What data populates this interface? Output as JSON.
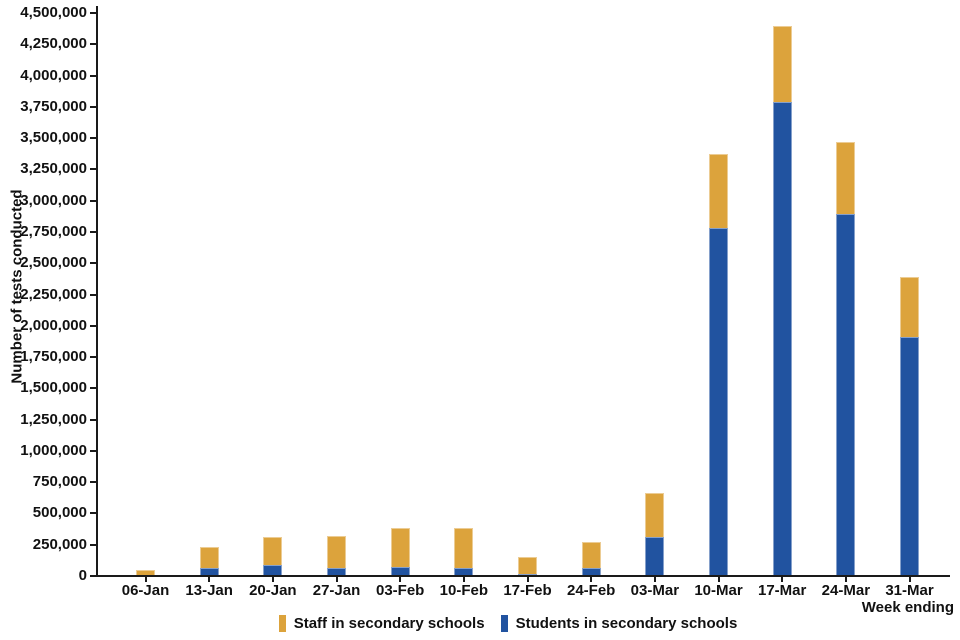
{
  "chart_data": {
    "type": "bar",
    "stacked": true,
    "title": "",
    "ylabel": "Number of tests conducted",
    "xlabel": "Week ending",
    "ylim": [
      0,
      4500000
    ],
    "ytick_step": 250000,
    "yticks": [
      "0",
      "250,000",
      "500,000",
      "750,000",
      "1,000,000",
      "1,250,000",
      "1,500,000",
      "1,750,000",
      "2,000,000",
      "2,250,000",
      "2,500,000",
      "2,750,000",
      "3,000,000",
      "3,250,000",
      "3,500,000",
      "3,750,000",
      "4,000,000",
      "4,250,000",
      "4,500,000"
    ],
    "categories": [
      "06-Jan",
      "13-Jan",
      "20-Jan",
      "27-Jan",
      "03-Feb",
      "10-Feb",
      "17-Feb",
      "24-Feb",
      "03-Mar",
      "10-Mar",
      "17-Mar",
      "24-Mar",
      "31-Mar"
    ],
    "series": [
      {
        "name": "Students in secondary schools",
        "color": "#2153A0",
        "values": [
          10000,
          60000,
          85000,
          65000,
          75000,
          65000,
          15000,
          65000,
          310000,
          2780000,
          3790000,
          2890000,
          1910000
        ]
      },
      {
        "name": "Staff in secondary schools",
        "color": "#DCA33C",
        "values": [
          40000,
          175000,
          230000,
          255000,
          310000,
          315000,
          140000,
          205000,
          355000,
          590000,
          610000,
          580000,
          480000
        ]
      }
    ],
    "legend": [
      {
        "label": "Staff in secondary schools",
        "color": "#DCA33C"
      },
      {
        "label": "Students in secondary schools",
        "color": "#2153A0"
      }
    ],
    "legend_position": "bottom",
    "grid": false,
    "colors": {
      "axis": "#1a1a1a",
      "text": "#111111",
      "staff": "#DCA33C",
      "students": "#2153A0"
    }
  }
}
